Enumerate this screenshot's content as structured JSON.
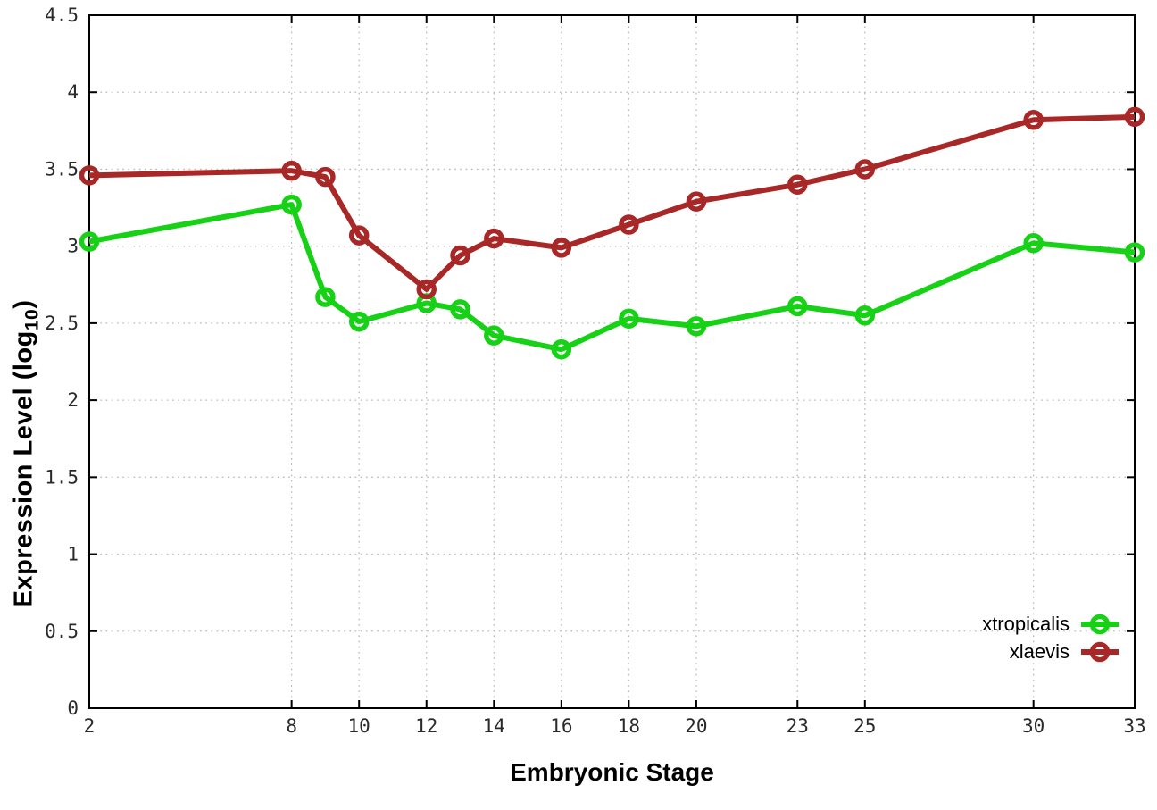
{
  "chart_data": {
    "type": "line",
    "title": "",
    "xlabel": "Embryonic Stage",
    "ylabel": "Expression Level (log10)",
    "ylabel_parts": {
      "prefix": "Expression Level (log",
      "sub": "10",
      "suffix": ")"
    },
    "xlim": [
      2,
      33
    ],
    "ylim": [
      0,
      4.5
    ],
    "xticks": [
      2,
      8,
      10,
      12,
      14,
      16,
      18,
      20,
      23,
      25,
      30,
      33
    ],
    "xtick_labels": [
      "2",
      "8",
      "10",
      "12",
      "14",
      "16",
      "18",
      "20",
      "23",
      "25",
      "30",
      "33"
    ],
    "ytick_values": [
      0,
      0.5,
      1,
      1.5,
      2,
      2.5,
      3,
      3.5,
      4,
      4.5
    ],
    "ytick_labels": [
      "0",
      "0.5",
      "1",
      "1.5",
      "2",
      "2.5",
      "3",
      "3.5",
      "4",
      "4.5"
    ],
    "grid": true,
    "legend_position": "bottom-right-inside",
    "x": [
      2,
      8,
      9,
      10,
      12,
      13,
      14,
      16,
      18,
      20,
      23,
      25,
      30,
      33
    ],
    "series": [
      {
        "name": "xtropicalis",
        "color": "#16d116",
        "marker": "open-circle",
        "values": [
          3.03,
          3.27,
          2.67,
          2.51,
          2.63,
          2.59,
          2.42,
          2.33,
          2.53,
          2.48,
          2.61,
          2.55,
          3.02,
          2.96
        ]
      },
      {
        "name": "xlaevis",
        "color": "#a82828",
        "marker": "open-circle",
        "values": [
          3.46,
          3.49,
          3.45,
          3.07,
          2.72,
          2.94,
          3.05,
          2.99,
          3.14,
          3.29,
          3.4,
          3.5,
          3.82,
          3.84
        ]
      }
    ],
    "colors": {
      "background": "#ffffff",
      "axis": "#000000",
      "grid": "#b8b8b8",
      "tick_label": "#2a2a2a"
    }
  }
}
